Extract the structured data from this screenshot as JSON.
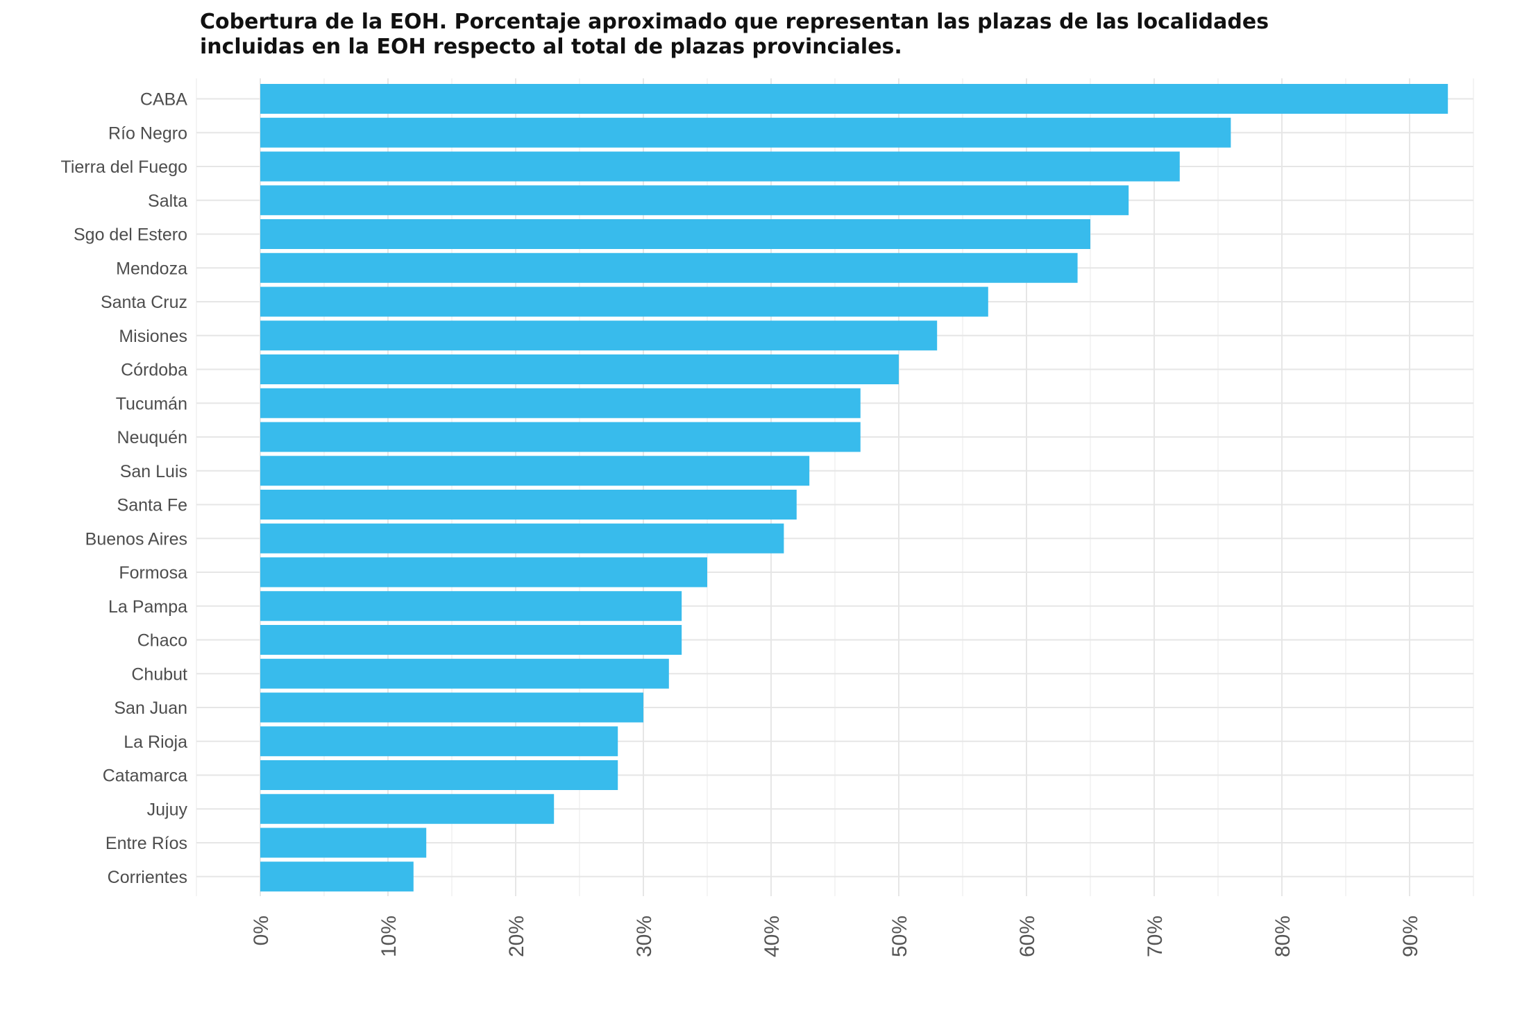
{
  "chart_data": {
    "type": "bar",
    "orientation": "horizontal",
    "title": "Cobertura de la EOH. Porcentaje aproximado que representan las plazas de las localidades\n incluidas en la EOH respecto al total de plazas provinciales.",
    "xlabel": "",
    "ylabel": "",
    "categories": [
      "CABA",
      "Río Negro",
      "Tierra del Fuego",
      "Salta",
      "Sgo del Estero",
      "Mendoza",
      "Santa Cruz",
      "Misiones",
      "Córdoba",
      "Tucumán",
      "Neuquén",
      "San Luis",
      "Santa Fe",
      "Buenos Aires",
      "Formosa",
      "La Pampa",
      "Chaco",
      "Chubut",
      "San Juan",
      "La Rioja",
      "Catamarca",
      "Jujuy",
      "Entre Ríos",
      "Corrientes"
    ],
    "values": [
      93,
      76,
      72,
      68,
      65,
      64,
      57,
      53,
      50,
      47,
      47,
      43,
      42,
      41,
      35,
      33,
      33,
      32,
      30,
      28,
      28,
      23,
      13,
      12
    ],
    "xlim": [
      -5,
      95
    ],
    "xticks": [
      0,
      10,
      20,
      30,
      40,
      50,
      60,
      70,
      80,
      90
    ],
    "xtick_labels": [
      "0%",
      "10%",
      "20%",
      "30%",
      "40%",
      "50%",
      "60%",
      "70%",
      "80%",
      "90%"
    ],
    "grid": true,
    "legend": "none",
    "colors": {
      "bar": "#38bbec",
      "grid": "#e6e6e6",
      "text": "#4d4d4d",
      "title": "#111111"
    }
  }
}
